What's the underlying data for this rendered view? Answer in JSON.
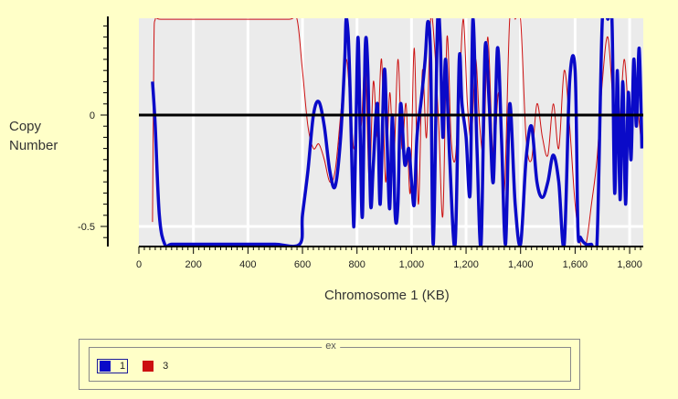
{
  "chart_data": {
    "type": "line",
    "ylabel_lines": [
      "Copy",
      "Number"
    ],
    "xlabel": "Chromosome 1 (KB)",
    "xlim": [
      0,
      1850
    ],
    "ylim": [
      -0.58,
      0.43
    ],
    "x_ticks": [
      0,
      200,
      400,
      600,
      800,
      1000,
      1200,
      1400,
      1600,
      1800
    ],
    "x_tick_labels": [
      "0",
      "200",
      "400",
      "600",
      "800",
      "1,000",
      "1,200",
      "1,400",
      "1,600",
      "1,800"
    ],
    "y_ticks": [
      0,
      -0.5
    ],
    "y_tick_labels": [
      "0",
      "-0.5"
    ],
    "grid": true,
    "legend_title": "ex",
    "legend_position": "bottom",
    "series": [
      {
        "name": "1",
        "color": "#0a0ac8",
        "x": [
          50,
          60,
          75,
          95,
          120,
          180,
          300,
          400,
          500,
          590,
          600,
          620,
          640,
          660,
          680,
          700,
          720,
          740,
          755,
          760,
          768,
          775,
          785,
          790,
          800,
          805,
          812,
          820,
          830,
          840,
          850,
          860,
          875,
          885,
          900,
          910,
          920,
          930,
          940,
          950,
          960,
          975,
          990,
          1000,
          1010,
          1020,
          1035,
          1050,
          1060,
          1070,
          1080,
          1095,
          1105,
          1115,
          1125,
          1140,
          1160,
          1175,
          1185,
          1200,
          1215,
          1225,
          1240,
          1255,
          1270,
          1285,
          1300,
          1315,
          1330,
          1345,
          1360,
          1380,
          1400,
          1420,
          1440,
          1460,
          1480,
          1500,
          1520,
          1540,
          1560,
          1580,
          1600,
          1610,
          1620,
          1640,
          1660,
          1680,
          1700,
          1720,
          1735,
          1745,
          1755,
          1765,
          1775,
          1785,
          1795,
          1805,
          1815,
          1825,
          1835,
          1845
        ],
        "y": [
          0.15,
          -0.05,
          -0.45,
          -0.58,
          -0.58,
          -0.58,
          -0.58,
          -0.58,
          -0.58,
          -0.58,
          -0.45,
          -0.25,
          0.0,
          0.06,
          -0.05,
          -0.25,
          -0.32,
          -0.1,
          0.25,
          0.43,
          0.35,
          0.1,
          -0.4,
          -0.45,
          0.2,
          0.33,
          -0.1,
          -0.45,
          0.3,
          0.2,
          -0.4,
          -0.22,
          0.05,
          -0.4,
          0.2,
          -0.1,
          -0.42,
          0.0,
          -0.45,
          -0.4,
          0.05,
          -0.22,
          -0.15,
          -0.3,
          -0.4,
          -0.1,
          0.06,
          0.25,
          0.42,
          0.25,
          -0.58,
          0.4,
          0.35,
          -0.1,
          0.25,
          -0.2,
          -0.58,
          0.25,
          0.05,
          -0.1,
          -0.35,
          0.43,
          -0.15,
          -0.58,
          0.3,
          0.05,
          -0.3,
          0.3,
          -0.1,
          -0.58,
          0.05,
          -0.4,
          -0.58,
          -0.2,
          -0.05,
          -0.3,
          -0.37,
          -0.3,
          -0.18,
          -0.3,
          -0.58,
          0.15,
          0.2,
          -0.5,
          -0.55,
          -0.58,
          -0.58,
          -0.58,
          0.43,
          0.43,
          0.43,
          -0.35,
          0.2,
          -0.38,
          0.15,
          -0.4,
          0.1,
          -0.2,
          0.25,
          -0.05,
          0.3,
          -0.15
        ]
      },
      {
        "name": "3",
        "color": "#cc1010",
        "x": [
          50,
          55,
          60,
          80,
          200,
          400,
          550,
          580,
          600,
          620,
          640,
          660,
          680,
          700,
          720,
          740,
          760,
          775,
          790,
          800,
          815,
          830,
          845,
          860,
          875,
          890,
          905,
          920,
          935,
          950,
          965,
          980,
          995,
          1010,
          1025,
          1040,
          1055,
          1070,
          1085,
          1100,
          1115,
          1130,
          1145,
          1160,
          1175,
          1190,
          1205,
          1220,
          1235,
          1250,
          1265,
          1280,
          1300,
          1320,
          1340,
          1360,
          1380,
          1400,
          1420,
          1440,
          1460,
          1480,
          1500,
          1520,
          1540,
          1560,
          1580,
          1600,
          1620,
          1640,
          1660,
          1680,
          1700,
          1720,
          1740,
          1760,
          1780,
          1800,
          1820,
          1845
        ],
        "y": [
          -0.48,
          0.3,
          0.43,
          0.43,
          0.43,
          0.43,
          0.43,
          0.43,
          0.2,
          -0.05,
          -0.15,
          -0.13,
          -0.2,
          -0.3,
          -0.25,
          0.0,
          0.25,
          0.05,
          -0.15,
          0.2,
          -0.05,
          0.25,
          -0.3,
          0.15,
          -0.1,
          0.25,
          -0.3,
          0.1,
          -0.2,
          0.25,
          -0.15,
          0.05,
          -0.35,
          0.3,
          -0.4,
          0.2,
          -0.1,
          0.43,
          0.3,
          -0.05,
          -0.45,
          0.35,
          -0.1,
          -0.2,
          0.1,
          0.43,
          0.05,
          -0.1,
          0.25,
          -0.05,
          -0.15,
          0.35,
          -0.2,
          0.1,
          -0.35,
          0.43,
          0.43,
          0.43,
          -0.1,
          -0.2,
          0.05,
          -0.1,
          -0.18,
          0.05,
          -0.15,
          0.2,
          -0.05,
          -0.4,
          -0.58,
          -0.58,
          -0.4,
          -0.2,
          0.15,
          0.35,
          0.05,
          -0.1,
          0.25,
          -0.05,
          0.1,
          -0.15
        ]
      }
    ]
  },
  "legend": {
    "title": "ex",
    "items": [
      {
        "label": "1",
        "color": "#0a0ac8",
        "selected": true
      },
      {
        "label": "3",
        "color": "#cc1010",
        "selected": false
      }
    ]
  }
}
